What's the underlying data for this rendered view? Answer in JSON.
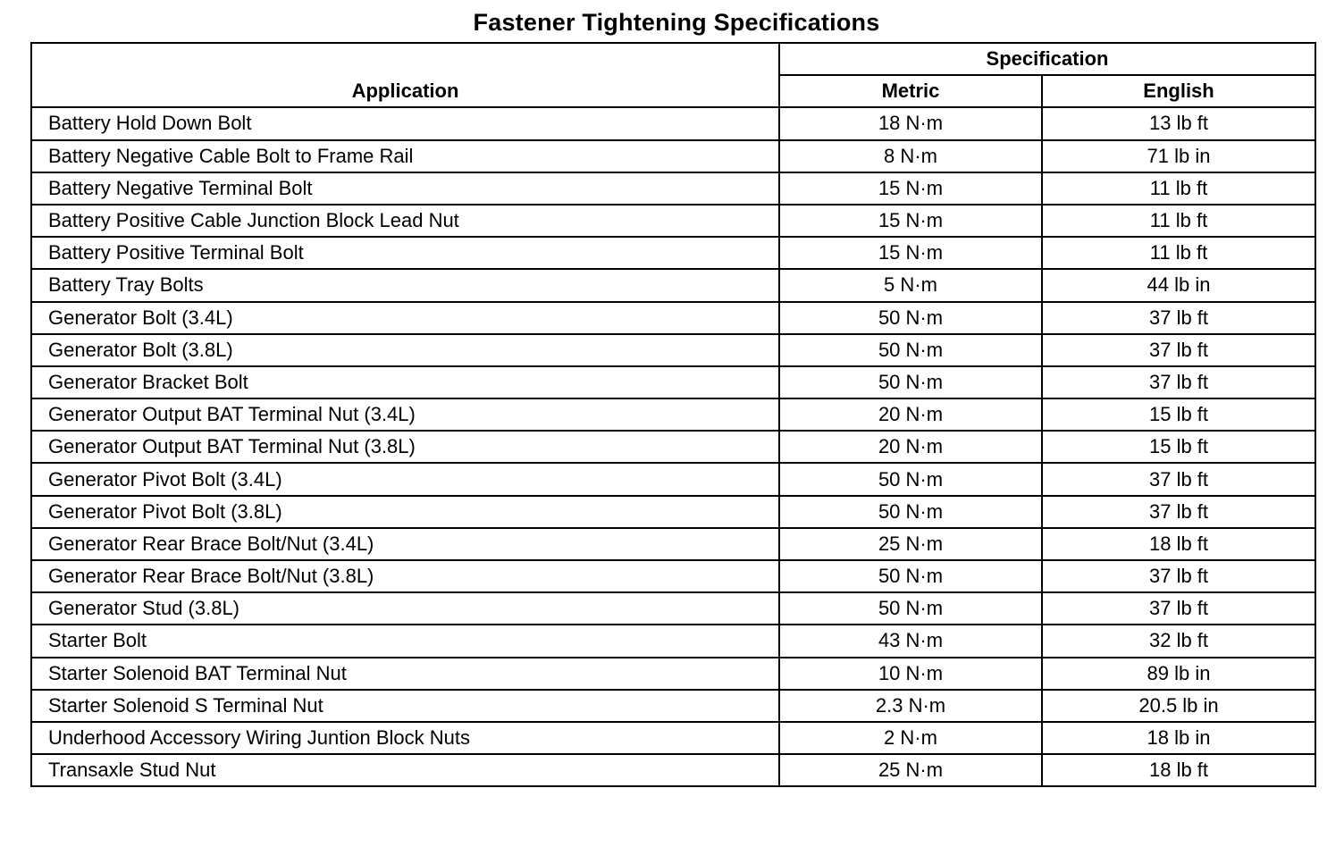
{
  "title": "Fastener Tightening Specifications",
  "headers": {
    "application": "Application",
    "specification": "Specification",
    "metric": "Metric",
    "english": "English"
  },
  "rows": [
    {
      "application": "Battery Hold Down Bolt",
      "metric": "18 N·m",
      "english": "13 lb ft"
    },
    {
      "application": "Battery Negative Cable Bolt to Frame Rail",
      "metric": "8 N·m",
      "english": "71 lb in"
    },
    {
      "application": "Battery Negative Terminal Bolt",
      "metric": "15 N·m",
      "english": "11 lb ft"
    },
    {
      "application": "Battery Positive Cable Junction Block Lead Nut",
      "metric": "15 N·m",
      "english": "11 lb ft"
    },
    {
      "application": "Battery Positive Terminal Bolt",
      "metric": "15 N·m",
      "english": "11 lb ft"
    },
    {
      "application": "Battery Tray Bolts",
      "metric": "5 N·m",
      "english": "44 lb in"
    },
    {
      "application": "Generator Bolt (3.4L)",
      "metric": "50 N·m",
      "english": "37 lb ft"
    },
    {
      "application": "Generator Bolt (3.8L)",
      "metric": "50 N·m",
      "english": "37 lb ft"
    },
    {
      "application": "Generator Bracket Bolt",
      "metric": "50 N·m",
      "english": "37 lb ft"
    },
    {
      "application": "Generator Output BAT Terminal Nut (3.4L)",
      "metric": "20 N·m",
      "english": "15 lb ft"
    },
    {
      "application": "Generator Output BAT Terminal Nut (3.8L)",
      "metric": "20 N·m",
      "english": "15 lb ft"
    },
    {
      "application": "Generator Pivot Bolt (3.4L)",
      "metric": "50 N·m",
      "english": "37 lb ft"
    },
    {
      "application": "Generator Pivot Bolt (3.8L)",
      "metric": "50 N·m",
      "english": "37 lb ft"
    },
    {
      "application": "Generator Rear Brace Bolt/Nut (3.4L)",
      "metric": "25 N·m",
      "english": "18 lb ft"
    },
    {
      "application": "Generator Rear Brace Bolt/Nut (3.8L)",
      "metric": "50 N·m",
      "english": "37 lb ft"
    },
    {
      "application": "Generator Stud (3.8L)",
      "metric": "50 N·m",
      "english": "37 lb ft"
    },
    {
      "application": "Starter Bolt",
      "metric": "43 N·m",
      "english": "32 lb ft"
    },
    {
      "application": "Starter Solenoid BAT Terminal Nut",
      "metric": "10 N·m",
      "english": "89 lb in"
    },
    {
      "application": "Starter Solenoid S Terminal Nut",
      "metric": "2.3 N·m",
      "english": "20.5 lb in"
    },
    {
      "application": "Underhood Accessory Wiring Juntion Block Nuts",
      "metric": "2 N·m",
      "english": "18 lb in"
    },
    {
      "application": "Transaxle Stud Nut",
      "metric": "25 N·m",
      "english": "18 lb ft"
    }
  ]
}
